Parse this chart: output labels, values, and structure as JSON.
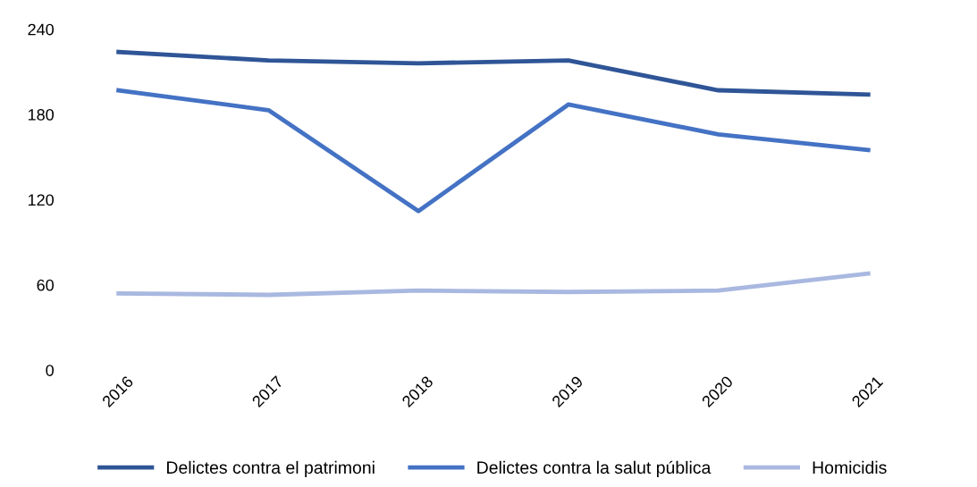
{
  "chart_data": {
    "type": "line",
    "categories": [
      "2016",
      "2017",
      "2018",
      "2019",
      "2020",
      "2021"
    ],
    "series": [
      {
        "name": "Delictes contra el patrimoni",
        "color": "#2f5597",
        "values": [
          224,
          218,
          216,
          218,
          197,
          194
        ]
      },
      {
        "name": "Delictes contra la salut pública",
        "color": "#4472c4",
        "values": [
          197,
          183,
          112,
          187,
          166,
          155
        ]
      },
      {
        "name": "Homicidis",
        "color": "#a9b8e0",
        "values": [
          54,
          53,
          56,
          55,
          56,
          68
        ]
      }
    ],
    "ylim": [
      0,
      240
    ],
    "yticks": [
      0,
      60,
      120,
      180,
      240
    ],
    "grid": false,
    "legend": "bottom",
    "marker": "none",
    "line_style": "solid"
  }
}
